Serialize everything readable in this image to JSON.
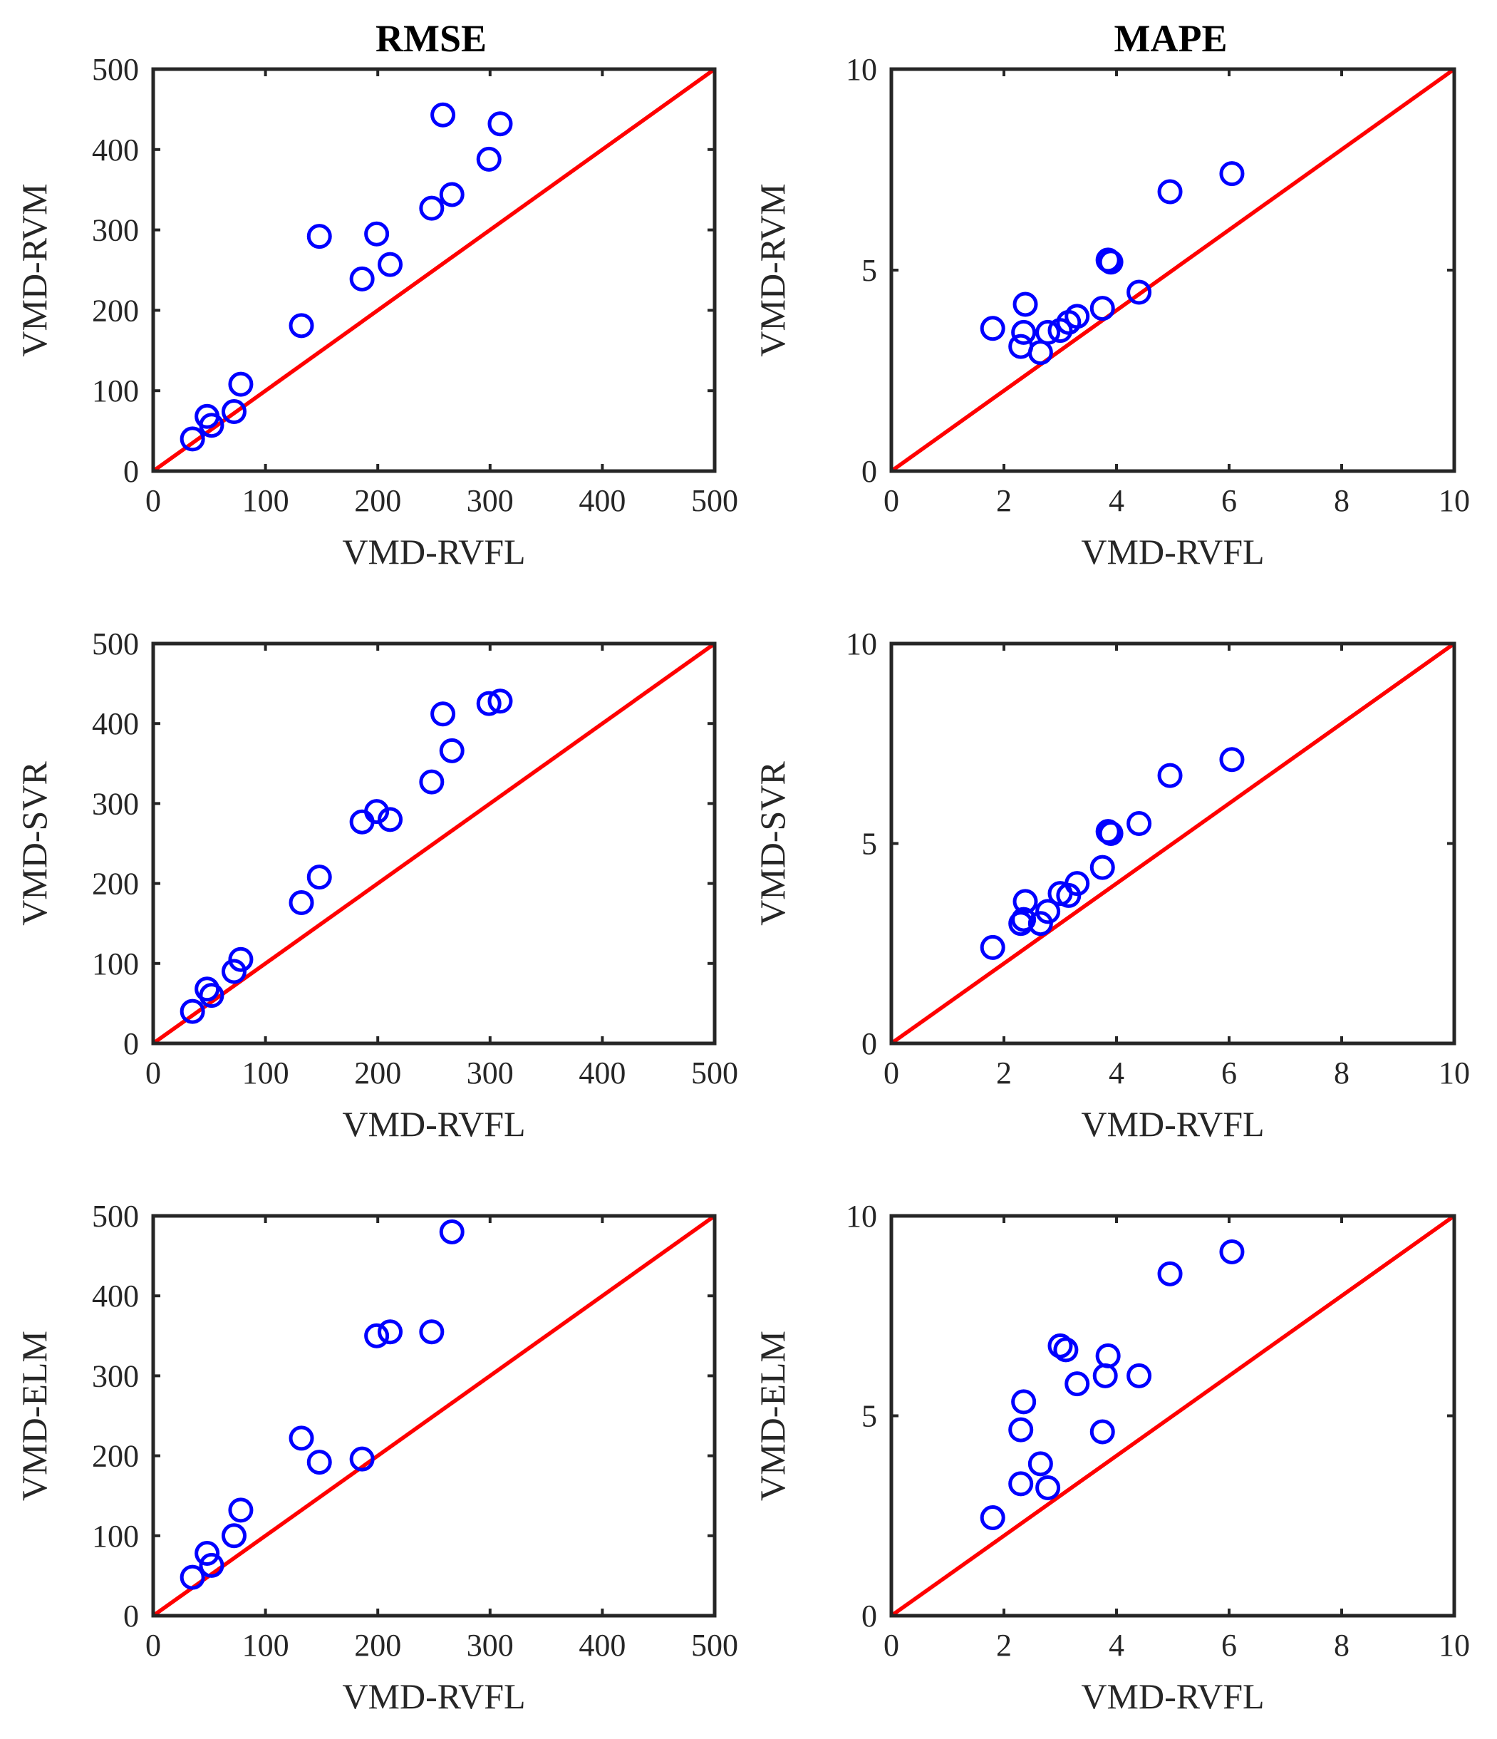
{
  "colors": {
    "marker": "#0000ff",
    "diagonal": "#ff0000",
    "axis": "#262626"
  },
  "chart_data": [
    {
      "type": "scatter",
      "title": "RMSE",
      "xlabel": "VMD-RVFL",
      "ylabel": "VMD-RVM",
      "xlim": [
        0,
        500
      ],
      "ylim": [
        0,
        500
      ],
      "xticks": [
        "0",
        "100",
        "200",
        "300",
        "400",
        "500"
      ],
      "yticks": [
        "0",
        "100",
        "200",
        "300",
        "400",
        "500"
      ],
      "diagonal": [
        [
          0,
          0
        ],
        [
          500,
          500
        ]
      ],
      "points": [
        [
          35,
          40
        ],
        [
          48,
          68
        ],
        [
          52,
          57
        ],
        [
          72,
          74
        ],
        [
          78,
          108
        ],
        [
          132,
          181
        ],
        [
          148,
          292
        ],
        [
          186,
          239
        ],
        [
          199,
          295
        ],
        [
          211,
          257
        ],
        [
          248,
          327
        ],
        [
          258,
          443
        ],
        [
          266,
          344
        ],
        [
          299,
          388
        ],
        [
          309,
          432
        ]
      ]
    },
    {
      "type": "scatter",
      "title": "MAPE",
      "xlabel": "VMD-RVFL",
      "ylabel": "VMD-RVM",
      "xlim": [
        0,
        10
      ],
      "ylim": [
        0,
        10
      ],
      "xticks": [
        "0",
        "2",
        "4",
        "6",
        "8",
        "10"
      ],
      "yticks": [
        "0",
        "5",
        "10"
      ],
      "diagonal": [
        [
          0,
          0
        ],
        [
          10,
          10
        ]
      ],
      "points": [
        [
          1.8,
          3.55
        ],
        [
          2.3,
          3.1
        ],
        [
          2.35,
          3.45
        ],
        [
          2.38,
          4.15
        ],
        [
          2.65,
          2.95
        ],
        [
          2.78,
          3.45
        ],
        [
          3.0,
          3.5
        ],
        [
          3.15,
          3.7
        ],
        [
          3.3,
          3.85
        ],
        [
          3.75,
          4.05
        ],
        [
          3.85,
          5.25
        ],
        [
          3.9,
          5.2
        ],
        [
          4.4,
          4.45
        ],
        [
          4.95,
          6.95
        ],
        [
          6.05,
          7.4
        ]
      ]
    },
    {
      "type": "scatter",
      "title": "",
      "xlabel": "VMD-RVFL",
      "ylabel": "VMD-SVR",
      "xlim": [
        0,
        500
      ],
      "ylim": [
        0,
        500
      ],
      "xticks": [
        "0",
        "100",
        "200",
        "300",
        "400",
        "500"
      ],
      "yticks": [
        "0",
        "100",
        "200",
        "300",
        "400",
        "500"
      ],
      "diagonal": [
        [
          0,
          0
        ],
        [
          500,
          500
        ]
      ],
      "points": [
        [
          35,
          40
        ],
        [
          48,
          68
        ],
        [
          52,
          60
        ],
        [
          72,
          90
        ],
        [
          78,
          105
        ],
        [
          132,
          176
        ],
        [
          148,
          208
        ],
        [
          186,
          277
        ],
        [
          199,
          290
        ],
        [
          211,
          280
        ],
        [
          248,
          327
        ],
        [
          258,
          412
        ],
        [
          266,
          366
        ],
        [
          299,
          425
        ],
        [
          309,
          428
        ]
      ]
    },
    {
      "type": "scatter",
      "title": "",
      "xlabel": "VMD-RVFL",
      "ylabel": "VMD-SVR",
      "xlim": [
        0,
        10
      ],
      "ylim": [
        0,
        10
      ],
      "xticks": [
        "0",
        "2",
        "4",
        "6",
        "8",
        "10"
      ],
      "yticks": [
        "0",
        "5",
        "10"
      ],
      "diagonal": [
        [
          0,
          0
        ],
        [
          10,
          10
        ]
      ],
      "points": [
        [
          1.8,
          2.4
        ],
        [
          2.3,
          3.0
        ],
        [
          2.35,
          3.1
        ],
        [
          2.38,
          3.55
        ],
        [
          2.65,
          3.0
        ],
        [
          2.78,
          3.3
        ],
        [
          3.0,
          3.75
        ],
        [
          3.15,
          3.7
        ],
        [
          3.3,
          4.0
        ],
        [
          3.75,
          4.4
        ],
        [
          3.85,
          5.3
        ],
        [
          3.9,
          5.25
        ],
        [
          4.4,
          5.5
        ],
        [
          4.95,
          6.7
        ],
        [
          6.05,
          7.1
        ]
      ]
    },
    {
      "type": "scatter",
      "title": "",
      "xlabel": "VMD-RVFL",
      "ylabel": "VMD-ELM",
      "xlim": [
        0,
        500
      ],
      "ylim": [
        0,
        500
      ],
      "xticks": [
        "0",
        "100",
        "200",
        "300",
        "400",
        "500"
      ],
      "yticks": [
        "0",
        "100",
        "200",
        "300",
        "400",
        "500"
      ],
      "diagonal": [
        [
          0,
          0
        ],
        [
          500,
          500
        ]
      ],
      "points": [
        [
          35,
          48
        ],
        [
          48,
          78
        ],
        [
          52,
          63
        ],
        [
          72,
          100
        ],
        [
          78,
          132
        ],
        [
          132,
          222
        ],
        [
          148,
          192
        ],
        [
          186,
          196
        ],
        [
          199,
          350
        ],
        [
          211,
          355
        ],
        [
          248,
          355
        ],
        [
          266,
          480
        ]
      ]
    },
    {
      "type": "scatter",
      "title": "",
      "xlabel": "VMD-RVFL",
      "ylabel": "VMD-ELM",
      "xlim": [
        0,
        10
      ],
      "ylim": [
        0,
        10
      ],
      "xticks": [
        "0",
        "2",
        "4",
        "6",
        "8",
        "10"
      ],
      "yticks": [
        "0",
        "5",
        "10"
      ],
      "diagonal": [
        [
          0,
          0
        ],
        [
          10,
          10
        ]
      ],
      "points": [
        [
          1.8,
          2.45
        ],
        [
          2.3,
          3.3
        ],
        [
          2.3,
          4.65
        ],
        [
          2.35,
          5.35
        ],
        [
          2.65,
          3.8
        ],
        [
          2.78,
          3.2
        ],
        [
          3.0,
          6.75
        ],
        [
          3.1,
          6.65
        ],
        [
          3.3,
          5.8
        ],
        [
          3.75,
          4.6
        ],
        [
          3.8,
          6.0
        ],
        [
          3.85,
          6.5
        ],
        [
          4.4,
          6.0
        ],
        [
          4.95,
          8.55
        ],
        [
          6.05,
          9.1
        ]
      ]
    }
  ]
}
